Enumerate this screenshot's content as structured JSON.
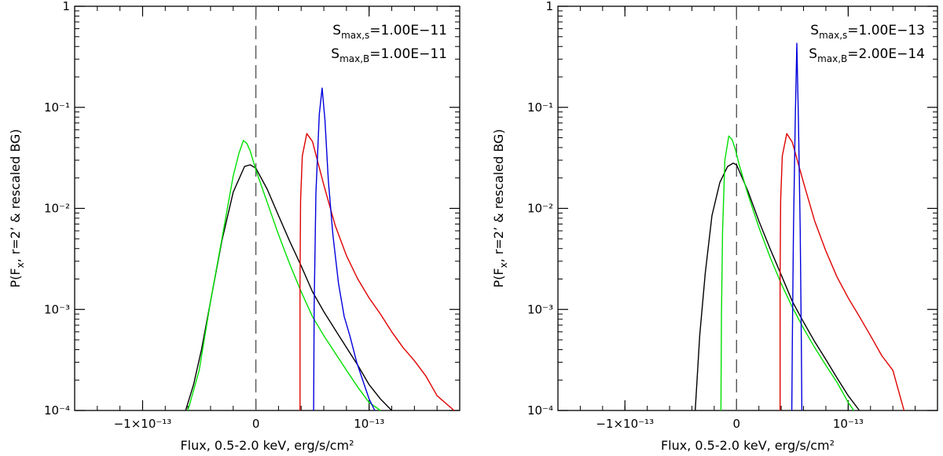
{
  "chart_data": [
    {
      "type": "line",
      "xlabel": "Flux, 0.5-2.0 keV, erg/s/cm²",
      "ylabel": "P(F_x, r=2’ & rescaled BG)",
      "xlim": [
        -1.6e-13,
        1.8e-13
      ],
      "ylim": [
        0.0001,
        1
      ],
      "yscale": "log",
      "xticks": [
        {
          "value": -1e-13,
          "label": "−1×10⁻¹³"
        },
        {
          "value": 0,
          "label": "0"
        },
        {
          "value": 1e-13,
          "label": "10⁻¹³"
        }
      ],
      "yticks": [
        {
          "value": 1,
          "label": "1"
        },
        {
          "value": 0.1,
          "label": "10⁻¹"
        },
        {
          "value": 0.01,
          "label": "10⁻²"
        },
        {
          "value": 0.001,
          "label": "10⁻³"
        },
        {
          "value": 0.0001,
          "label": "10⁻⁴"
        }
      ],
      "vline": {
        "x": 0,
        "style": "dashed"
      },
      "annotations": [
        {
          "sub": "max,s",
          "value": "=1.00E−11"
        },
        {
          "sub": "max,B",
          "value": "=1.00E−11"
        }
      ],
      "series": [
        {
          "name": "black",
          "color": "#000000",
          "x": [
            -6.2e-14,
            -5.5e-14,
            -4.8e-14,
            -4e-14,
            -3e-14,
            -2e-14,
            -1e-14,
            -5e-15,
            0,
            1e-14,
            2e-14,
            3e-14,
            4e-14,
            5e-14,
            6e-14,
            7e-14,
            8e-14,
            9e-14,
            1e-13,
            1.1e-13,
            1.2e-13
          ],
          "y": [
            0.0001,
            0.00018,
            0.0004,
            0.0012,
            0.0048,
            0.0145,
            0.026,
            0.027,
            0.025,
            0.0155,
            0.0085,
            0.0047,
            0.0027,
            0.0015,
            0.00095,
            0.00063,
            0.00042,
            0.00028,
            0.00018,
            0.00013,
            0.0001
          ]
        },
        {
          "name": "green",
          "color": "#00e000",
          "x": [
            -6e-14,
            -5e-14,
            -4e-14,
            -3e-14,
            -2e-14,
            -1.5e-14,
            -1.1e-14,
            -8e-15,
            -5e-15,
            0,
            1e-14,
            2e-14,
            3e-14,
            4e-14,
            5e-14,
            6e-14,
            7e-14,
            8e-14,
            9e-14,
            1e-13,
            1.1e-13
          ],
          "y": [
            0.0001,
            0.00025,
            0.0012,
            0.005,
            0.021,
            0.035,
            0.047,
            0.044,
            0.037,
            0.024,
            0.0115,
            0.0055,
            0.0028,
            0.0015,
            0.00085,
            0.00055,
            0.00037,
            0.00025,
            0.00017,
            0.00012,
            0.0001
          ]
        },
        {
          "name": "red",
          "color": "#e00000",
          "x": [
            3.9e-14,
            3.9e-14,
            3.95e-14,
            4.1e-14,
            4.5e-14,
            5e-14,
            6e-14,
            7e-14,
            8e-14,
            9e-14,
            1e-13,
            1.1e-13,
            1.2e-13,
            1.3e-13,
            1.4e-13,
            1.5e-13,
            1.6e-13,
            1.75e-13
          ],
          "y": [
            0.0001,
            0.002,
            0.012,
            0.033,
            0.055,
            0.046,
            0.017,
            0.0068,
            0.0034,
            0.002,
            0.0013,
            0.0009,
            0.0006,
            0.00042,
            0.00031,
            0.00022,
            0.00014,
            0.0001
          ]
        },
        {
          "name": "blue",
          "color": "#0000dd",
          "x": [
            5.1e-14,
            5.15e-14,
            5.3e-14,
            5.6e-14,
            5.85e-14,
            6.1e-14,
            6.4e-14,
            6.8e-14,
            7.3e-14,
            7.8e-14,
            8.3e-14,
            8.9e-14,
            9.5e-14,
            1e-13,
            1.05e-13
          ],
          "y": [
            0.0001,
            0.0011,
            0.014,
            0.085,
            0.155,
            0.075,
            0.019,
            0.0055,
            0.0018,
            0.00085,
            0.00055,
            0.0003,
            0.00019,
            0.00013,
            0.0001
          ]
        }
      ]
    },
    {
      "type": "line",
      "xlabel": "Flux, 0.5-2.0 keV, erg/s/cm²",
      "ylabel": "P(F_x, r=2’ & rescaled BG)",
      "xlim": [
        -1.6e-13,
        1.8e-13
      ],
      "ylim": [
        0.0001,
        1
      ],
      "yscale": "log",
      "xticks": [
        {
          "value": -1e-13,
          "label": "−1×10⁻¹³"
        },
        {
          "value": 0,
          "label": "0"
        },
        {
          "value": 1e-13,
          "label": "10⁻¹³"
        }
      ],
      "yticks": [
        {
          "value": 1,
          "label": "1"
        },
        {
          "value": 0.1,
          "label": "10⁻¹"
        },
        {
          "value": 0.01,
          "label": "10⁻²"
        },
        {
          "value": 0.001,
          "label": "10⁻³"
        },
        {
          "value": 0.0001,
          "label": "10⁻⁴"
        }
      ],
      "vline": {
        "x": 0,
        "style": "dashed"
      },
      "annotations": [
        {
          "sub": "max,s",
          "value": "=1.00E−13"
        },
        {
          "sub": "max,B",
          "value": "=2.00E−14"
        }
      ],
      "series": [
        {
          "name": "black",
          "color": "#000000",
          "x": [
            -3.7e-14,
            -3.3e-14,
            -2.8e-14,
            -2.2e-14,
            -1.5e-14,
            -8e-15,
            -3e-15,
            0,
            1e-14,
            2e-14,
            3e-14,
            4e-14,
            5e-14,
            6e-14,
            7e-14,
            8e-14,
            9e-14,
            1e-13,
            1.1e-13
          ],
          "y": [
            0.0001,
            0.00055,
            0.0023,
            0.0085,
            0.018,
            0.026,
            0.028,
            0.027,
            0.015,
            0.0075,
            0.004,
            0.0022,
            0.0012,
            0.00075,
            0.00048,
            0.00032,
            0.00021,
            0.00014,
            0.0001
          ]
        },
        {
          "name": "green",
          "color": "#00e000",
          "x": [
            -1.4e-14,
            -1.35e-14,
            -1.25e-14,
            -1.05e-14,
            -7e-15,
            -4e-15,
            -1e-15,
            2e-15,
            1e-14,
            2e-14,
            3e-14,
            4e-14,
            5e-14,
            6e-14,
            7e-14,
            8e-14,
            9e-14,
            1e-13,
            1.05e-13
          ],
          "y": [
            0.0001,
            0.0009,
            0.006,
            0.03,
            0.052,
            0.048,
            0.038,
            0.028,
            0.014,
            0.0065,
            0.0033,
            0.0018,
            0.00105,
            0.00065,
            0.00042,
            0.00028,
            0.00019,
            0.00012,
            0.0001
          ]
        },
        {
          "name": "red",
          "color": "#e00000",
          "x": [
            3.9e-14,
            3.9e-14,
            3.95e-14,
            4.1e-14,
            4.5e-14,
            5e-14,
            6e-14,
            7e-14,
            8e-14,
            9e-14,
            1e-13,
            1.1e-13,
            1.2e-13,
            1.3e-13,
            1.4e-13,
            1.5e-13
          ],
          "y": [
            0.0001,
            0.002,
            0.012,
            0.033,
            0.055,
            0.045,
            0.018,
            0.0075,
            0.0038,
            0.0021,
            0.0013,
            0.00085,
            0.00055,
            0.00035,
            0.00025,
            0.0001
          ]
        },
        {
          "name": "blue",
          "color": "#0000dd",
          "x": [
            4.95e-14,
            5e-14,
            5.1e-14,
            5.25e-14,
            5.4e-14,
            5.55e-14,
            5.7e-14,
            5.8e-14,
            5.85e-14
          ],
          "y": [
            0.0001,
            0.0005,
            0.006,
            0.07,
            0.43,
            0.07,
            0.006,
            0.0005,
            0.0001
          ]
        }
      ]
    }
  ]
}
